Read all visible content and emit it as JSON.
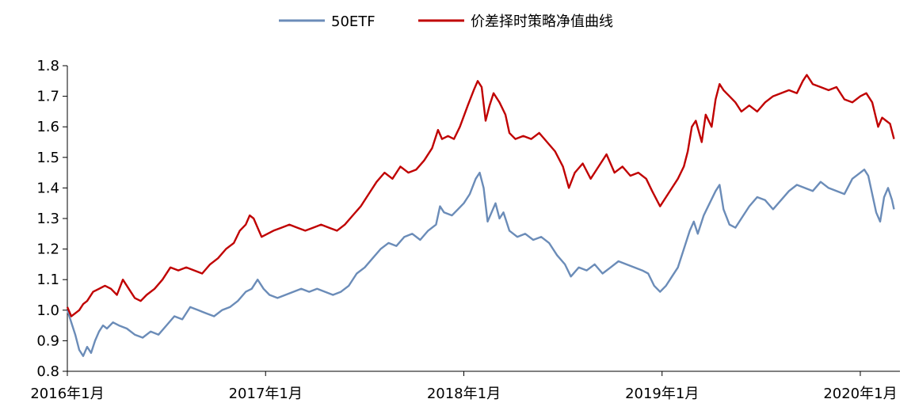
{
  "chart_data": {
    "type": "line",
    "title": "",
    "xlabel": "",
    "ylabel": "",
    "ylim": [
      0.8,
      1.8
    ],
    "yticks": [
      "0.8",
      "0.9",
      "1.0",
      "1.1",
      "1.2",
      "1.3",
      "1.4",
      "1.5",
      "1.6",
      "1.7",
      "1.8"
    ],
    "xlim": [
      2016.0,
      2020.2
    ],
    "xticks": [
      {
        "x": 2016.0,
        "label": "2016年1月"
      },
      {
        "x": 2017.0,
        "label": "2017年1月"
      },
      {
        "x": 2018.0,
        "label": "2018年1月"
      },
      {
        "x": 2019.0,
        "label": "2019年1月"
      },
      {
        "x": 2020.0,
        "label": "2020年1月"
      }
    ],
    "grid": false,
    "legend_position": "top-center",
    "series": [
      {
        "name": "50ETF",
        "color": "#6B8CB8",
        "points": [
          [
            2016.0,
            1.0
          ],
          [
            2016.02,
            0.96
          ],
          [
            2016.04,
            0.92
          ],
          [
            2016.06,
            0.87
          ],
          [
            2016.08,
            0.85
          ],
          [
            2016.1,
            0.88
          ],
          [
            2016.12,
            0.86
          ],
          [
            2016.14,
            0.9
          ],
          [
            2016.16,
            0.93
          ],
          [
            2016.18,
            0.95
          ],
          [
            2016.2,
            0.94
          ],
          [
            2016.23,
            0.96
          ],
          [
            2016.26,
            0.95
          ],
          [
            2016.3,
            0.94
          ],
          [
            2016.34,
            0.92
          ],
          [
            2016.38,
            0.91
          ],
          [
            2016.42,
            0.93
          ],
          [
            2016.46,
            0.92
          ],
          [
            2016.5,
            0.95
          ],
          [
            2016.54,
            0.98
          ],
          [
            2016.58,
            0.97
          ],
          [
            2016.62,
            1.01
          ],
          [
            2016.66,
            1.0
          ],
          [
            2016.7,
            0.99
          ],
          [
            2016.74,
            0.98
          ],
          [
            2016.78,
            1.0
          ],
          [
            2016.82,
            1.01
          ],
          [
            2016.86,
            1.03
          ],
          [
            2016.9,
            1.06
          ],
          [
            2016.93,
            1.07
          ],
          [
            2016.96,
            1.1
          ],
          [
            2016.99,
            1.07
          ],
          [
            2017.02,
            1.05
          ],
          [
            2017.06,
            1.04
          ],
          [
            2017.1,
            1.05
          ],
          [
            2017.14,
            1.06
          ],
          [
            2017.18,
            1.07
          ],
          [
            2017.22,
            1.06
          ],
          [
            2017.26,
            1.07
          ],
          [
            2017.3,
            1.06
          ],
          [
            2017.34,
            1.05
          ],
          [
            2017.38,
            1.06
          ],
          [
            2017.42,
            1.08
          ],
          [
            2017.46,
            1.12
          ],
          [
            2017.5,
            1.14
          ],
          [
            2017.54,
            1.17
          ],
          [
            2017.58,
            1.2
          ],
          [
            2017.62,
            1.22
          ],
          [
            2017.66,
            1.21
          ],
          [
            2017.7,
            1.24
          ],
          [
            2017.74,
            1.25
          ],
          [
            2017.78,
            1.23
          ],
          [
            2017.82,
            1.26
          ],
          [
            2017.86,
            1.28
          ],
          [
            2017.88,
            1.34
          ],
          [
            2017.9,
            1.32
          ],
          [
            2017.94,
            1.31
          ],
          [
            2017.97,
            1.33
          ],
          [
            2018.0,
            1.35
          ],
          [
            2018.03,
            1.38
          ],
          [
            2018.06,
            1.43
          ],
          [
            2018.08,
            1.45
          ],
          [
            2018.1,
            1.4
          ],
          [
            2018.12,
            1.29
          ],
          [
            2018.14,
            1.32
          ],
          [
            2018.16,
            1.35
          ],
          [
            2018.18,
            1.3
          ],
          [
            2018.2,
            1.32
          ],
          [
            2018.23,
            1.26
          ],
          [
            2018.27,
            1.24
          ],
          [
            2018.31,
            1.25
          ],
          [
            2018.35,
            1.23
          ],
          [
            2018.39,
            1.24
          ],
          [
            2018.43,
            1.22
          ],
          [
            2018.47,
            1.18
          ],
          [
            2018.51,
            1.15
          ],
          [
            2018.54,
            1.11
          ],
          [
            2018.58,
            1.14
          ],
          [
            2018.62,
            1.13
          ],
          [
            2018.66,
            1.15
          ],
          [
            2018.7,
            1.12
          ],
          [
            2018.74,
            1.14
          ],
          [
            2018.78,
            1.16
          ],
          [
            2018.82,
            1.15
          ],
          [
            2018.86,
            1.14
          ],
          [
            2018.9,
            1.13
          ],
          [
            2018.93,
            1.12
          ],
          [
            2018.96,
            1.08
          ],
          [
            2018.99,
            1.06
          ],
          [
            2019.02,
            1.08
          ],
          [
            2019.05,
            1.11
          ],
          [
            2019.08,
            1.14
          ],
          [
            2019.11,
            1.2
          ],
          [
            2019.14,
            1.26
          ],
          [
            2019.16,
            1.29
          ],
          [
            2019.18,
            1.25
          ],
          [
            2019.21,
            1.31
          ],
          [
            2019.24,
            1.35
          ],
          [
            2019.27,
            1.39
          ],
          [
            2019.29,
            1.41
          ],
          [
            2019.31,
            1.33
          ],
          [
            2019.34,
            1.28
          ],
          [
            2019.37,
            1.27
          ],
          [
            2019.4,
            1.3
          ],
          [
            2019.44,
            1.34
          ],
          [
            2019.48,
            1.37
          ],
          [
            2019.52,
            1.36
          ],
          [
            2019.56,
            1.33
          ],
          [
            2019.6,
            1.36
          ],
          [
            2019.64,
            1.39
          ],
          [
            2019.68,
            1.41
          ],
          [
            2019.72,
            1.4
          ],
          [
            2019.76,
            1.39
          ],
          [
            2019.8,
            1.42
          ],
          [
            2019.84,
            1.4
          ],
          [
            2019.88,
            1.39
          ],
          [
            2019.92,
            1.38
          ],
          [
            2019.96,
            1.43
          ],
          [
            2020.0,
            1.45
          ],
          [
            2020.02,
            1.46
          ],
          [
            2020.04,
            1.44
          ],
          [
            2020.06,
            1.38
          ],
          [
            2020.08,
            1.32
          ],
          [
            2020.1,
            1.29
          ],
          [
            2020.12,
            1.37
          ],
          [
            2020.14,
            1.4
          ],
          [
            2020.16,
            1.36
          ],
          [
            2020.17,
            1.33
          ]
        ]
      },
      {
        "name": "价差择时策略净值曲线",
        "color": "#C00000",
        "points": [
          [
            2016.0,
            1.01
          ],
          [
            2016.02,
            0.98
          ],
          [
            2016.04,
            0.99
          ],
          [
            2016.06,
            1.0
          ],
          [
            2016.08,
            1.02
          ],
          [
            2016.1,
            1.03
          ],
          [
            2016.13,
            1.06
          ],
          [
            2016.16,
            1.07
          ],
          [
            2016.19,
            1.08
          ],
          [
            2016.22,
            1.07
          ],
          [
            2016.25,
            1.05
          ],
          [
            2016.28,
            1.1
          ],
          [
            2016.31,
            1.07
          ],
          [
            2016.34,
            1.04
          ],
          [
            2016.37,
            1.03
          ],
          [
            2016.4,
            1.05
          ],
          [
            2016.44,
            1.07
          ],
          [
            2016.48,
            1.1
          ],
          [
            2016.52,
            1.14
          ],
          [
            2016.56,
            1.13
          ],
          [
            2016.6,
            1.14
          ],
          [
            2016.64,
            1.13
          ],
          [
            2016.68,
            1.12
          ],
          [
            2016.72,
            1.15
          ],
          [
            2016.76,
            1.17
          ],
          [
            2016.8,
            1.2
          ],
          [
            2016.84,
            1.22
          ],
          [
            2016.87,
            1.26
          ],
          [
            2016.9,
            1.28
          ],
          [
            2016.92,
            1.31
          ],
          [
            2016.94,
            1.3
          ],
          [
            2016.96,
            1.27
          ],
          [
            2016.98,
            1.24
          ],
          [
            2017.01,
            1.25
          ],
          [
            2017.04,
            1.26
          ],
          [
            2017.08,
            1.27
          ],
          [
            2017.12,
            1.28
          ],
          [
            2017.16,
            1.27
          ],
          [
            2017.2,
            1.26
          ],
          [
            2017.24,
            1.27
          ],
          [
            2017.28,
            1.28
          ],
          [
            2017.32,
            1.27
          ],
          [
            2017.36,
            1.26
          ],
          [
            2017.4,
            1.28
          ],
          [
            2017.44,
            1.31
          ],
          [
            2017.48,
            1.34
          ],
          [
            2017.52,
            1.38
          ],
          [
            2017.56,
            1.42
          ],
          [
            2017.6,
            1.45
          ],
          [
            2017.64,
            1.43
          ],
          [
            2017.68,
            1.47
          ],
          [
            2017.72,
            1.45
          ],
          [
            2017.76,
            1.46
          ],
          [
            2017.8,
            1.49
          ],
          [
            2017.84,
            1.53
          ],
          [
            2017.87,
            1.59
          ],
          [
            2017.89,
            1.56
          ],
          [
            2017.92,
            1.57
          ],
          [
            2017.95,
            1.56
          ],
          [
            2017.98,
            1.6
          ],
          [
            2018.02,
            1.67
          ],
          [
            2018.05,
            1.72
          ],
          [
            2018.07,
            1.75
          ],
          [
            2018.09,
            1.73
          ],
          [
            2018.11,
            1.62
          ],
          [
            2018.13,
            1.67
          ],
          [
            2018.15,
            1.71
          ],
          [
            2018.18,
            1.68
          ],
          [
            2018.21,
            1.64
          ],
          [
            2018.23,
            1.58
          ],
          [
            2018.26,
            1.56
          ],
          [
            2018.3,
            1.57
          ],
          [
            2018.34,
            1.56
          ],
          [
            2018.38,
            1.58
          ],
          [
            2018.42,
            1.55
          ],
          [
            2018.46,
            1.52
          ],
          [
            2018.5,
            1.47
          ],
          [
            2018.53,
            1.4
          ],
          [
            2018.56,
            1.45
          ],
          [
            2018.6,
            1.48
          ],
          [
            2018.64,
            1.43
          ],
          [
            2018.68,
            1.47
          ],
          [
            2018.72,
            1.51
          ],
          [
            2018.76,
            1.45
          ],
          [
            2018.8,
            1.47
          ],
          [
            2018.84,
            1.44
          ],
          [
            2018.88,
            1.45
          ],
          [
            2018.92,
            1.43
          ],
          [
            2018.95,
            1.39
          ],
          [
            2018.99,
            1.34
          ],
          [
            2019.02,
            1.37
          ],
          [
            2019.05,
            1.4
          ],
          [
            2019.08,
            1.43
          ],
          [
            2019.11,
            1.47
          ],
          [
            2019.13,
            1.52
          ],
          [
            2019.15,
            1.6
          ],
          [
            2019.17,
            1.62
          ],
          [
            2019.2,
            1.55
          ],
          [
            2019.22,
            1.64
          ],
          [
            2019.25,
            1.6
          ],
          [
            2019.27,
            1.69
          ],
          [
            2019.29,
            1.74
          ],
          [
            2019.31,
            1.72
          ],
          [
            2019.34,
            1.7
          ],
          [
            2019.37,
            1.68
          ],
          [
            2019.4,
            1.65
          ],
          [
            2019.44,
            1.67
          ],
          [
            2019.48,
            1.65
          ],
          [
            2019.52,
            1.68
          ],
          [
            2019.56,
            1.7
          ],
          [
            2019.6,
            1.71
          ],
          [
            2019.64,
            1.72
          ],
          [
            2019.68,
            1.71
          ],
          [
            2019.71,
            1.75
          ],
          [
            2019.73,
            1.77
          ],
          [
            2019.76,
            1.74
          ],
          [
            2019.8,
            1.73
          ],
          [
            2019.84,
            1.72
          ],
          [
            2019.88,
            1.73
          ],
          [
            2019.92,
            1.69
          ],
          [
            2019.96,
            1.68
          ],
          [
            2020.0,
            1.7
          ],
          [
            2020.03,
            1.71
          ],
          [
            2020.06,
            1.68
          ],
          [
            2020.09,
            1.6
          ],
          [
            2020.11,
            1.63
          ],
          [
            2020.13,
            1.62
          ],
          [
            2020.15,
            1.61
          ],
          [
            2020.17,
            1.56
          ]
        ]
      }
    ]
  }
}
